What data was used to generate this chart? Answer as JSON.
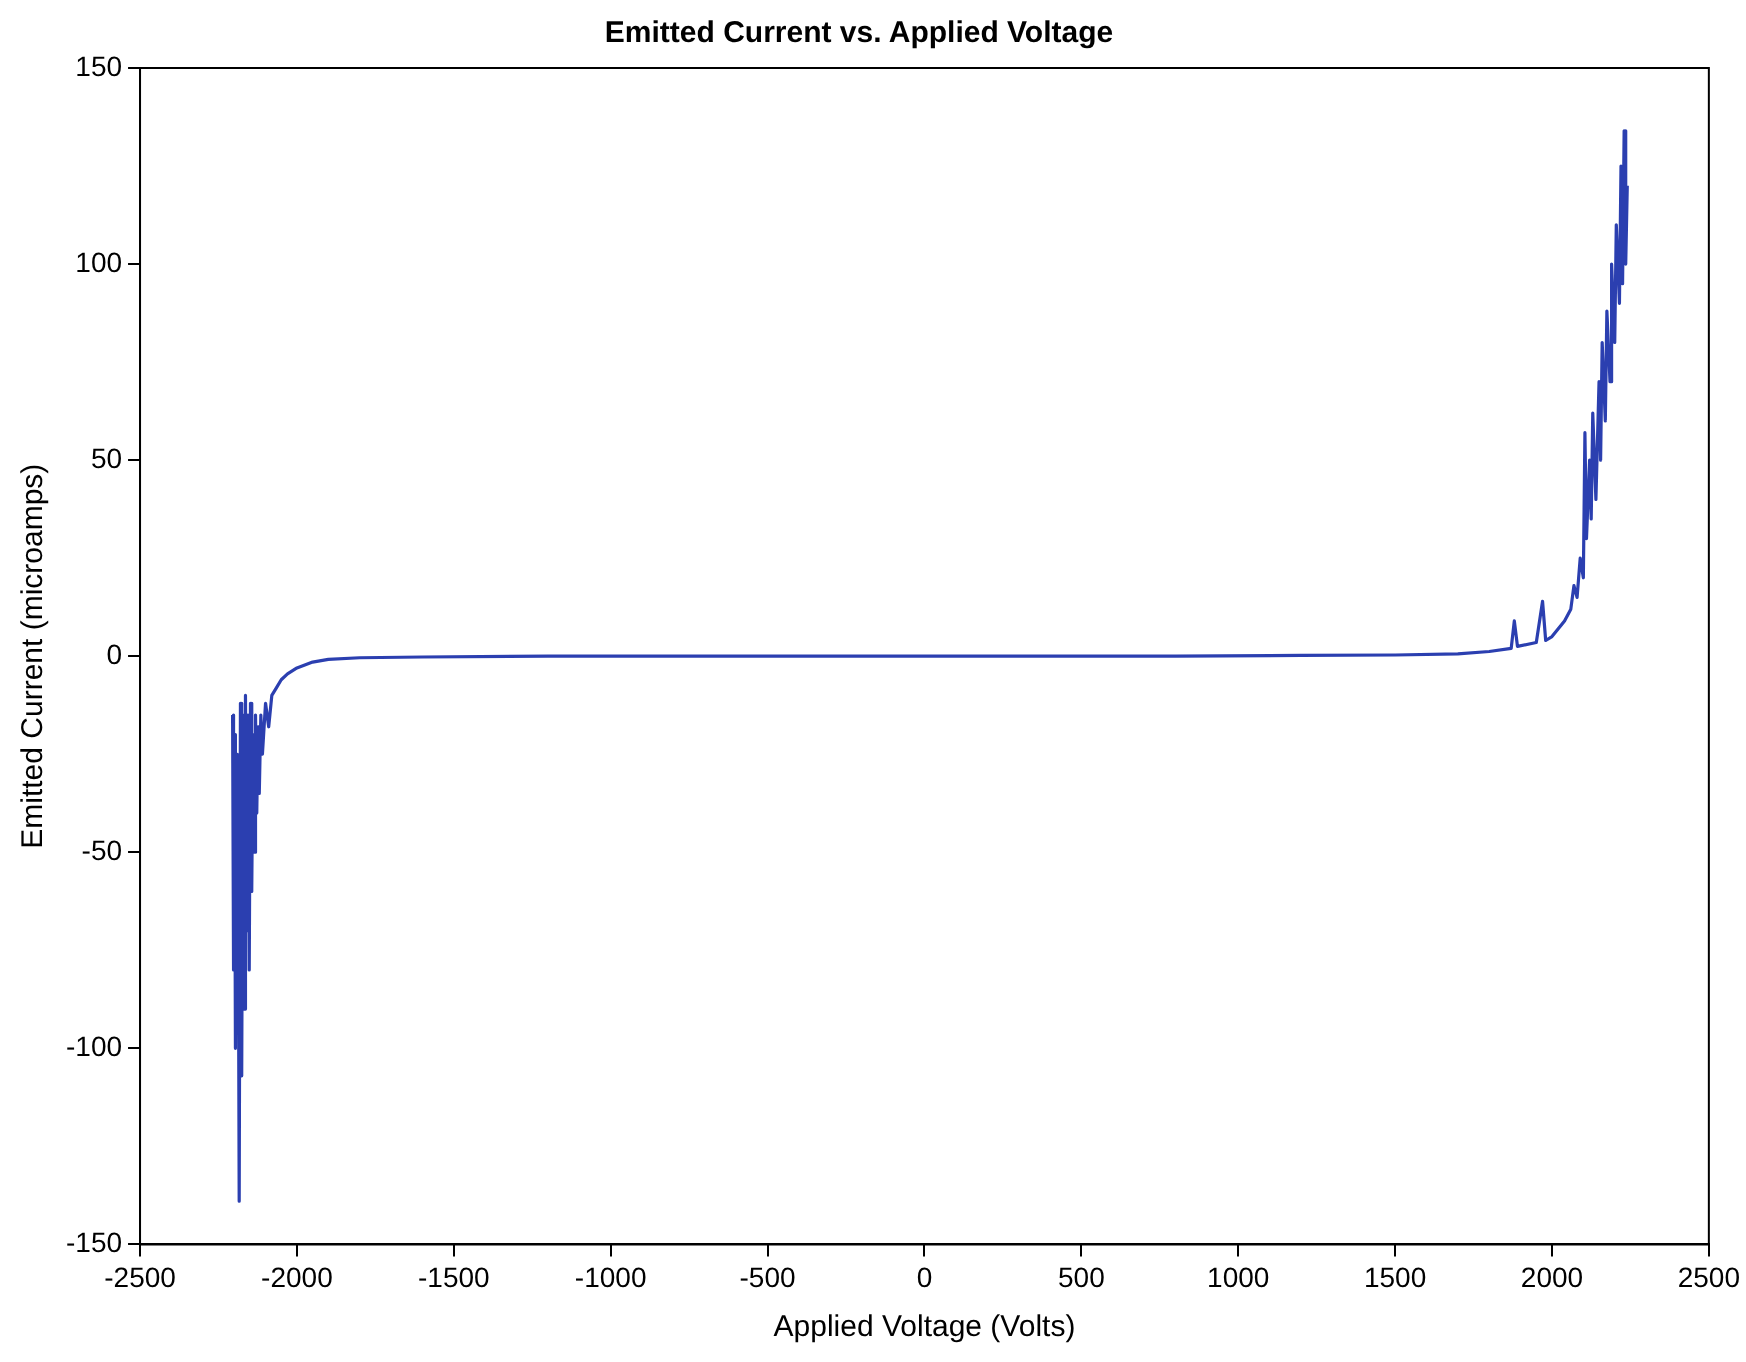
{
  "chart_data": {
    "type": "line",
    "title": "Emitted Current vs. Applied Voltage",
    "xlabel": "Applied Voltage (Volts)",
    "ylabel": "Emitted Current (microamps)",
    "xlim": [
      -2500,
      2500
    ],
    "xticks": [
      -2500,
      -2000,
      -1500,
      -1000,
      -500,
      0,
      500,
      1000,
      1500,
      2000,
      2500
    ],
    "ylim": [
      -150,
      150
    ],
    "yticks": [
      -150,
      -100,
      -50,
      0,
      50,
      100,
      150
    ],
    "grid": false,
    "legend": false,
    "marker": "none",
    "line_style": "solid",
    "series": [
      {
        "color": "#2b3fb0",
        "x": [
          -2205,
          -2202,
          -2199,
          -2196,
          -2193,
          -2190,
          -2187,
          -2184,
          -2180,
          -2176,
          -2172,
          -2168,
          -2164,
          -2160,
          -2156,
          -2152,
          -2148,
          -2144,
          -2140,
          -2136,
          -2132,
          -2128,
          -2124,
          -2120,
          -2115,
          -2110,
          -2100,
          -2090,
          -2080,
          -2065,
          -2050,
          -2030,
          -2000,
          -1950,
          -1900,
          -1800,
          -1600,
          -1200,
          -800,
          -400,
          0,
          400,
          800,
          1200,
          1500,
          1700,
          1800,
          1870,
          1880,
          1890,
          1950,
          1970,
          1980,
          2000,
          2020,
          2040,
          2060,
          2070,
          2080,
          2090,
          2100,
          2105,
          2110,
          2120,
          2125,
          2130,
          2140,
          2150,
          2155,
          2160,
          2170,
          2175,
          2185,
          2190,
          2200,
          2205,
          2215,
          2220,
          2225,
          2230,
          2235,
          2240
        ],
        "values": [
          -15,
          -80,
          -20,
          -100,
          -25,
          -75,
          -60,
          -139,
          -12,
          -107,
          -15,
          -90,
          -10,
          -70,
          -15,
          -80,
          -12,
          -60,
          -20,
          -50,
          -15,
          -40,
          -18,
          -35,
          -15,
          -25,
          -12,
          -18,
          -10,
          -8,
          -6,
          -4.5,
          -3,
          -1.5,
          -0.8,
          -0.4,
          -0.2,
          0,
          0,
          0,
          0,
          0,
          0,
          0.2,
          0.3,
          0.6,
          1.2,
          2,
          9,
          2.5,
          3.5,
          14,
          4,
          5,
          7,
          9,
          12,
          18,
          15,
          25,
          20,
          57,
          30,
          50,
          35,
          62,
          40,
          70,
          50,
          80,
          60,
          88,
          70,
          100,
          80,
          110,
          90,
          125,
          95,
          134,
          100,
          120
        ]
      }
    ]
  }
}
